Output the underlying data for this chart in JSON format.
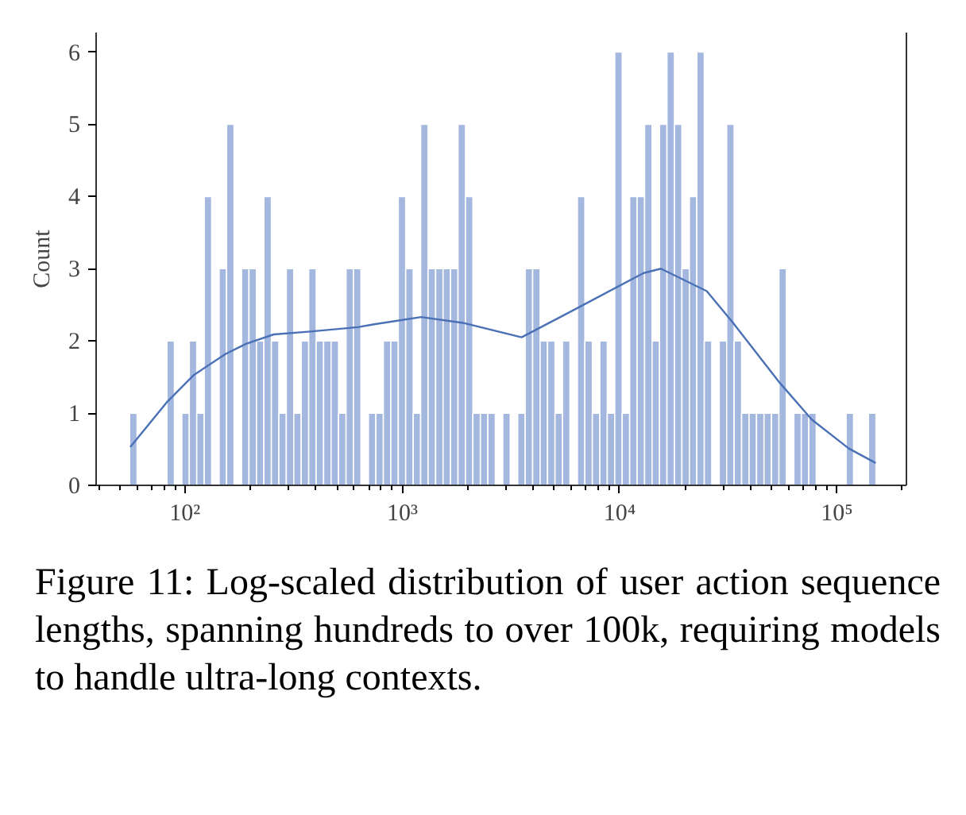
{
  "chart_data": {
    "type": "histogram",
    "ylabel": "Count",
    "color": "#a4b7de",
    "bins": [
      55.6,
      60.2,
      65.1,
      70.5,
      76.3,
      82.6,
      89.4,
      96.7,
      104.7,
      113.3,
      122.6,
      132.7,
      143.6,
      155.4,
      168.2,
      182.1,
      197.0,
      213.3,
      230.8,
      249.8,
      270.4,
      292.6,
      316.7,
      342.8,
      371.0,
      401.6,
      434.6,
      470.4,
      509.1,
      551.1,
      596.4,
      645.5,
      698.6,
      756.2,
      818.4,
      885.8,
      958.7,
      1037,
      1123,
      1215,
      1315,
      1424,
      1541,
      1668,
      1805,
      1954,
      2114,
      2288,
      2477,
      2681,
      2901,
      3140,
      3398,
      3678,
      3981,
      4309,
      4663,
      5047,
      5462,
      5912,
      6398,
      6925,
      7495,
      8112,
      8780,
      9502,
      10284,
      11130,
      12046,
      13038,
      14111,
      15272,
      16529,
      17889,
      19361,
      20955,
      22679,
      24547,
      26566,
      28753,
      31118,
      33680,
      36451,
      39451,
      42697,
      46212,
      50014,
      54131,
      58585,
      63407,
      68624,
      74272,
      80384,
      87001,
      94163,
      101930,
      110300,
      119400,
      129200,
      139800,
      151400
    ],
    "values": [
      1,
      0,
      0,
      0,
      0,
      2,
      0,
      1,
      2,
      1,
      4,
      0,
      3,
      5,
      0,
      3,
      3,
      2,
      4,
      2,
      1,
      3,
      1,
      2,
      3,
      2,
      2,
      2,
      1,
      3,
      3,
      0,
      1,
      1,
      2,
      2,
      4,
      3,
      1,
      5,
      3,
      3,
      3,
      3,
      5,
      4,
      1,
      1,
      1,
      0,
      1,
      0,
      1,
      3,
      3,
      2,
      2,
      1,
      2,
      0,
      4,
      2,
      1,
      2,
      1,
      6,
      1,
      4,
      4,
      5,
      2,
      5,
      6,
      5,
      3,
      4,
      6,
      2,
      0,
      2,
      5,
      2,
      1,
      1,
      1,
      1,
      1,
      3,
      0,
      1,
      1,
      1,
      0,
      0,
      0,
      0,
      1,
      0,
      0,
      1
    ],
    "series": [
      {
        "type": "line",
        "color": "#4a70b5",
        "x": [
          56,
          83,
          110,
          154,
          191,
          256,
          377,
          624,
          742,
          1222,
          1900,
          3540,
          5900,
          12900,
          15500,
          25200,
          33300,
          54600,
          76700,
          113500,
          151000
        ],
        "values": [
          0.53,
          1.16,
          1.53,
          1.82,
          1.96,
          2.09,
          2.13,
          2.19,
          2.23,
          2.33,
          2.25,
          2.05,
          2.4,
          2.94,
          3.0,
          2.69,
          2.25,
          1.42,
          0.91,
          0.51,
          0.31
        ]
      }
    ],
    "log": "x",
    "xlim": [
      39,
      209000
    ],
    "ylim": [
      0,
      6.27
    ],
    "xticks": [
      {
        "value": 100,
        "label": "10²"
      },
      {
        "value": 1000,
        "label": "10³"
      },
      {
        "value": 10000,
        "label": "10⁴"
      },
      {
        "value": 100000,
        "label": "10⁵"
      }
    ],
    "yticks": [
      0,
      1,
      2,
      3,
      4,
      5,
      6
    ],
    "grid": false,
    "annotations": [
      "Figure 11: Log-scaled distribution of user action sequence lengths, spanning hundreds to over 100k, requiring models to handle ultra-long contexts."
    ]
  }
}
